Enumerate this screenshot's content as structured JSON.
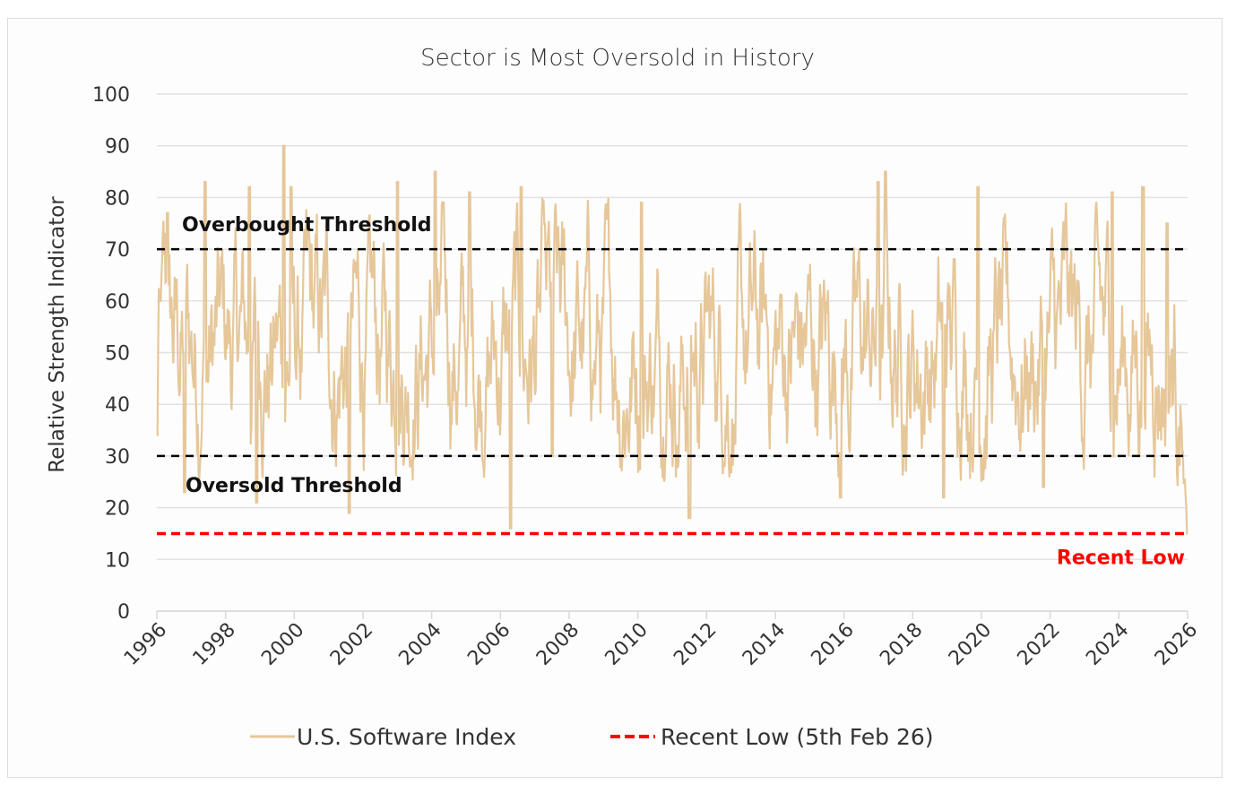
{
  "chart_data": {
    "type": "line",
    "title": "Sector is Most Oversold in History",
    "xlabel": "",
    "ylabel": "Relative Strength Indicator",
    "xlim": [
      1996,
      2026
    ],
    "ylim": [
      0,
      100
    ],
    "yticks": [
      0,
      10,
      20,
      30,
      40,
      50,
      60,
      70,
      80,
      90,
      100
    ],
    "xticks": [
      "1996",
      "1998",
      "2000",
      "2002",
      "2004",
      "2006",
      "2008",
      "2010",
      "2012",
      "2014",
      "2016",
      "2018",
      "2020",
      "2022",
      "2024",
      "2026"
    ],
    "grid": true,
    "legend_position": "bottom",
    "series": [
      {
        "name": "U.S. Software Index",
        "color": "#e6c79a",
        "style": "solid",
        "data_note": "Only the keypoints below were read from the screenshot. The full line is simulated noise around a 50 midpoint, oscillating roughly between 20 and 82, anchored to these keypoints. It is illustrative, not actual observed data.",
        "keypoints": [
          {
            "x": 1996.0,
            "y": 34
          },
          {
            "x": 1996.1,
            "y": 60
          },
          {
            "x": 1996.3,
            "y": 77
          },
          {
            "x": 1996.8,
            "y": 23
          },
          {
            "x": 1997.4,
            "y": 83
          },
          {
            "x": 1998.7,
            "y": 82
          },
          {
            "x": 1998.9,
            "y": 21
          },
          {
            "x": 1999.7,
            "y": 90
          },
          {
            "x": 1999.9,
            "y": 82
          },
          {
            "x": 2001.6,
            "y": 19
          },
          {
            "x": 2003.0,
            "y": 83
          },
          {
            "x": 2004.1,
            "y": 85
          },
          {
            "x": 2005.1,
            "y": 81
          },
          {
            "x": 2006.3,
            "y": 16
          },
          {
            "x": 2006.6,
            "y": 82
          },
          {
            "x": 2007.5,
            "y": 30
          },
          {
            "x": 2010.1,
            "y": 79
          },
          {
            "x": 2011.5,
            "y": 18
          },
          {
            "x": 2015.9,
            "y": 22
          },
          {
            "x": 2017.0,
            "y": 83
          },
          {
            "x": 2017.2,
            "y": 85
          },
          {
            "x": 2018.9,
            "y": 22
          },
          {
            "x": 2019.9,
            "y": 82
          },
          {
            "x": 2021.8,
            "y": 24
          },
          {
            "x": 2023.8,
            "y": 81
          },
          {
            "x": 2024.7,
            "y": 82
          },
          {
            "x": 2025.4,
            "y": 75
          },
          {
            "x": 2025.8,
            "y": 58
          },
          {
            "x": 2026.0,
            "y": 15
          }
        ]
      },
      {
        "name": "Recent Low (5th Feb 26)",
        "color": "#ff0000",
        "style": "dashed",
        "x": [
          1996,
          2026
        ],
        "values": [
          15,
          15
        ]
      }
    ],
    "reference_lines": [
      {
        "name": "Overbought Threshold",
        "y": 70,
        "color": "#000000",
        "style": "dashed"
      },
      {
        "name": "Oversold Threshold",
        "y": 30,
        "color": "#000000",
        "style": "dashed"
      }
    ],
    "annotations": [
      {
        "text": "Overbought Threshold",
        "near_y": 70,
        "position": "above-left"
      },
      {
        "text": "Oversold Threshold",
        "near_y": 30,
        "position": "below-left"
      },
      {
        "text": "Recent Low",
        "near_y": 15,
        "position": "below-right",
        "color": "#ff0000"
      }
    ]
  }
}
